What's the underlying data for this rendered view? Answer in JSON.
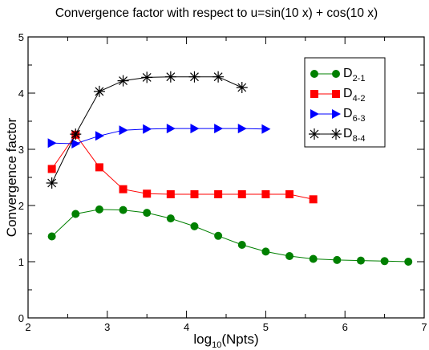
{
  "chart_data": {
    "type": "line",
    "title": "Convergence factor with respect to u=sin(10 x) + cos(10 x)",
    "xlabel": {
      "base": "log",
      "sub": "10",
      "rest": "(Npts)"
    },
    "ylabel": "Convergence factor",
    "xlim": [
      2,
      7
    ],
    "ylim": [
      0,
      5
    ],
    "xticks": [
      2,
      3,
      4,
      5,
      6,
      7
    ],
    "yticks": [
      0,
      1,
      2,
      3,
      4,
      5
    ],
    "grid": false,
    "legend_position": "top-right",
    "series": [
      {
        "name": "D",
        "sub": "2-1",
        "color": "#008000",
        "marker": "circle",
        "x": [
          2.3,
          2.6,
          2.9,
          3.2,
          3.5,
          3.8,
          4.1,
          4.4,
          4.7,
          5.0,
          5.3,
          5.6,
          5.9,
          6.2,
          6.5,
          6.8
        ],
        "y": [
          1.45,
          1.85,
          1.93,
          1.92,
          1.87,
          1.77,
          1.63,
          1.46,
          1.3,
          1.18,
          1.1,
          1.05,
          1.03,
          1.02,
          1.01,
          1.0
        ]
      },
      {
        "name": "D",
        "sub": "4-2",
        "color": "#ff0000",
        "marker": "square",
        "x": [
          2.3,
          2.6,
          2.9,
          3.2,
          3.5,
          3.8,
          4.1,
          4.4,
          4.7,
          5.0,
          5.3,
          5.6
        ],
        "y": [
          2.65,
          3.26,
          2.68,
          2.29,
          2.21,
          2.2,
          2.2,
          2.2,
          2.2,
          2.2,
          2.2,
          2.11
        ]
      },
      {
        "name": "D",
        "sub": "6-3",
        "color": "#0000ff",
        "marker": "triangle-right",
        "x": [
          2.3,
          2.6,
          2.9,
          3.2,
          3.5,
          3.8,
          4.1,
          4.4,
          4.7,
          5.0
        ],
        "y": [
          3.11,
          3.1,
          3.24,
          3.34,
          3.36,
          3.37,
          3.37,
          3.37,
          3.37,
          3.36
        ]
      },
      {
        "name": "D",
        "sub": "8-4",
        "color": "#000000",
        "marker": "asterisk",
        "x": [
          2.3,
          2.6,
          2.9,
          3.2,
          3.5,
          3.8,
          4.1,
          4.4,
          4.7
        ],
        "y": [
          2.4,
          3.27,
          4.03,
          4.22,
          4.28,
          4.29,
          4.29,
          4.29,
          4.1
        ]
      }
    ]
  }
}
